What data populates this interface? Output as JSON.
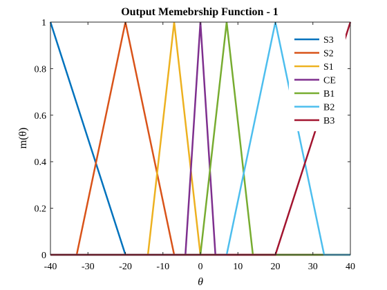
{
  "chart_data": {
    "type": "line",
    "title": "Output Memebrship Function - 1",
    "xlabel": "θ",
    "ylabel": "m(θ)",
    "xlim": [
      -40,
      40
    ],
    "ylim": [
      0,
      1
    ],
    "xticks": [
      -40,
      -30,
      -20,
      -10,
      0,
      10,
      20,
      30,
      40
    ],
    "xtick_labels": [
      "-40",
      "-30",
      "-20",
      "-10",
      "0",
      "10",
      "20",
      "30",
      "40"
    ],
    "yticks": [
      0,
      0.2,
      0.4,
      0.6,
      0.8,
      1
    ],
    "ytick_labels": [
      "0",
      "0.2",
      "0.4",
      "0.6",
      "0.8",
      "1"
    ],
    "grid": false,
    "legend_position": "top-right",
    "series": [
      {
        "name": "S3",
        "color": "#0072BD",
        "points": [
          [
            -40,
            1
          ],
          [
            -20,
            0
          ],
          [
            40,
            0
          ]
        ]
      },
      {
        "name": "S2",
        "color": "#D95319",
        "points": [
          [
            -40,
            0
          ],
          [
            -33,
            0
          ],
          [
            -20,
            1
          ],
          [
            -7,
            0
          ],
          [
            40,
            0
          ]
        ]
      },
      {
        "name": "S1",
        "color": "#EDB120",
        "points": [
          [
            -40,
            0
          ],
          [
            -14,
            0
          ],
          [
            -7,
            1
          ],
          [
            0,
            0
          ],
          [
            40,
            0
          ]
        ]
      },
      {
        "name": "CE",
        "color": "#7E2F8E",
        "points": [
          [
            -40,
            0
          ],
          [
            -4,
            0
          ],
          [
            0,
            1
          ],
          [
            4,
            0
          ],
          [
            40,
            0
          ]
        ]
      },
      {
        "name": "B1",
        "color": "#77AC30",
        "points": [
          [
            -40,
            0
          ],
          [
            0,
            0
          ],
          [
            7,
            1
          ],
          [
            14,
            0
          ],
          [
            40,
            0
          ]
        ]
      },
      {
        "name": "B2",
        "color": "#4DBEEE",
        "points": [
          [
            -40,
            0
          ],
          [
            7,
            0
          ],
          [
            20,
            1
          ],
          [
            33,
            0
          ],
          [
            40,
            0
          ]
        ]
      },
      {
        "name": "B3",
        "color": "#A2142F",
        "points": [
          [
            -40,
            0
          ],
          [
            20,
            0
          ],
          [
            40,
            1
          ]
        ]
      }
    ]
  }
}
